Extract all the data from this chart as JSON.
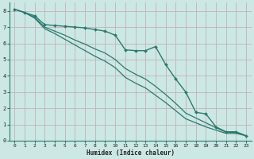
{
  "xlabel": "Humidex (Indice chaleur)",
  "background_color": "#cce8e4",
  "grid_color": "#c4b0b8",
  "line_color": "#2a7a6f",
  "xlim": [
    -0.5,
    23.5
  ],
  "ylim": [
    0,
    8.5
  ],
  "xticks": [
    0,
    1,
    2,
    3,
    4,
    5,
    6,
    7,
    8,
    9,
    10,
    11,
    12,
    13,
    14,
    15,
    16,
    17,
    18,
    19,
    20,
    21,
    22,
    23
  ],
  "yticks": [
    0,
    1,
    2,
    3,
    4,
    5,
    6,
    7,
    8
  ],
  "series": [
    {
      "x": [
        0,
        1,
        2,
        3,
        4,
        5,
        6,
        7,
        8,
        9,
        10,
        11,
        12,
        13,
        14,
        15,
        16,
        17,
        18,
        19,
        20,
        21,
        22,
        23
      ],
      "y": [
        8.1,
        7.9,
        7.7,
        7.15,
        7.1,
        7.05,
        7.0,
        6.95,
        6.85,
        6.75,
        6.5,
        5.6,
        5.55,
        5.55,
        5.8,
        4.7,
        3.8,
        3.0,
        1.75,
        1.65,
        0.85,
        0.55,
        0.55,
        0.3
      ],
      "marker": "D",
      "markersize": 2.0,
      "linewidth": 1.0
    },
    {
      "x": [
        0,
        1,
        2,
        3,
        4,
        5,
        6,
        7,
        8,
        9,
        10,
        11,
        12,
        13,
        14,
        15,
        16,
        17,
        18,
        19,
        20,
        21,
        22,
        23
      ],
      "y": [
        8.1,
        7.9,
        7.6,
        7.0,
        6.75,
        6.5,
        6.2,
        5.95,
        5.65,
        5.4,
        5.0,
        4.45,
        4.1,
        3.8,
        3.35,
        2.85,
        2.3,
        1.7,
        1.4,
        1.1,
        0.8,
        0.52,
        0.52,
        0.3
      ],
      "marker": "D",
      "markersize": 0,
      "linewidth": 0.9
    },
    {
      "x": [
        0,
        1,
        2,
        3,
        4,
        5,
        6,
        7,
        8,
        9,
        10,
        11,
        12,
        13,
        14,
        15,
        16,
        17,
        18,
        19,
        20,
        21,
        22,
        23
      ],
      "y": [
        8.1,
        7.9,
        7.55,
        6.9,
        6.6,
        6.25,
        5.9,
        5.55,
        5.2,
        4.9,
        4.5,
        3.9,
        3.55,
        3.25,
        2.8,
        2.35,
        1.85,
        1.35,
        1.1,
        0.85,
        0.65,
        0.45,
        0.45,
        0.3
      ],
      "marker": "D",
      "markersize": 0,
      "linewidth": 0.9
    }
  ]
}
